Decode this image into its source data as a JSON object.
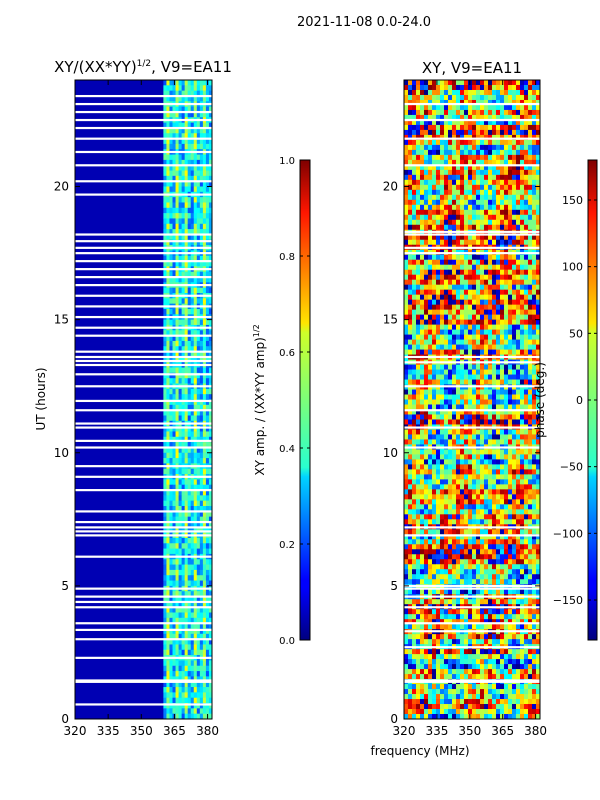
{
  "figure": {
    "suptitle": "2021-11-08 0.0-24.0",
    "xlabel_shared": "frequency (MHz)"
  },
  "chart_data": [
    {
      "type": "heatmap",
      "title_main": "XY/(XX*YY)",
      "title_sup": "1/2",
      "title_tail": ", V9=EA11",
      "ylabel": "UT (hours)",
      "xlim": [
        320,
        382
      ],
      "ylim": [
        0,
        24
      ],
      "xticks": [
        320,
        335,
        350,
        365,
        380
      ],
      "yticks": [
        0,
        5,
        10,
        15,
        20
      ],
      "colorbar": {
        "label_main": "XY amp. / (XX*YY amp)",
        "label_sup": "1/2",
        "range": [
          0.0,
          1.0
        ],
        "ticks": [
          0.0,
          0.2,
          0.4,
          0.6,
          0.8,
          1.0
        ],
        "tick_labels": [
          "0.0",
          "0.2",
          "0.4",
          "0.6",
          "0.8",
          "1.0"
        ],
        "colormap": "jet"
      },
      "description_values": {
        "background_level": 0.05,
        "rfi_band_mhz": [
          360,
          382
        ],
        "rfi_level_range": [
          0.2,
          0.55
        ]
      },
      "flagged_ut_hours": [
        0.55,
        1.4,
        1.45,
        2.3,
        3.0,
        3.35,
        3.6,
        4.2,
        4.4,
        4.6,
        4.9,
        6.1,
        6.9,
        7.05,
        7.2,
        7.4,
        7.8,
        8.6,
        9.1,
        9.5,
        10.2,
        10.45,
        10.95,
        11.1,
        11.6,
        11.95,
        12.5,
        12.95,
        13.3,
        13.45,
        13.6,
        13.8,
        14.4,
        14.7,
        15.1,
        15.5,
        15.9,
        16.3,
        16.6,
        16.9,
        17.2,
        17.5,
        17.7,
        17.95,
        18.2,
        19.7,
        20.2,
        20.8,
        21.3,
        21.8,
        22.2,
        22.5,
        22.8,
        23.1,
        23.4
      ]
    },
    {
      "type": "heatmap",
      "title": "XY, V9=EA11",
      "xlim": [
        320,
        382
      ],
      "ylim": [
        0,
        24
      ],
      "xticks": [
        320,
        335,
        350,
        365,
        380
      ],
      "yticks": [
        0,
        5,
        10,
        15,
        20
      ],
      "colorbar": {
        "label": "phase (deg.)",
        "range": [
          -180,
          180
        ],
        "ticks": [
          -150,
          -100,
          -50,
          0,
          50,
          100,
          150
        ],
        "tick_labels": [
          "−150",
          "−100",
          "−50",
          "0",
          "50",
          "100",
          "150"
        ],
        "colormap": "jet"
      },
      "flagged_ut_hours": [
        1.4,
        1.45,
        2.7,
        3.3,
        3.6,
        4.2,
        4.6,
        4.9,
        5.0,
        6.9,
        7.2,
        10.2,
        10.95,
        11.6,
        12.5,
        13.4,
        13.6,
        17.5,
        17.7,
        18.2,
        18.3,
        20.8,
        21.8,
        22.5,
        23.1
      ]
    }
  ]
}
